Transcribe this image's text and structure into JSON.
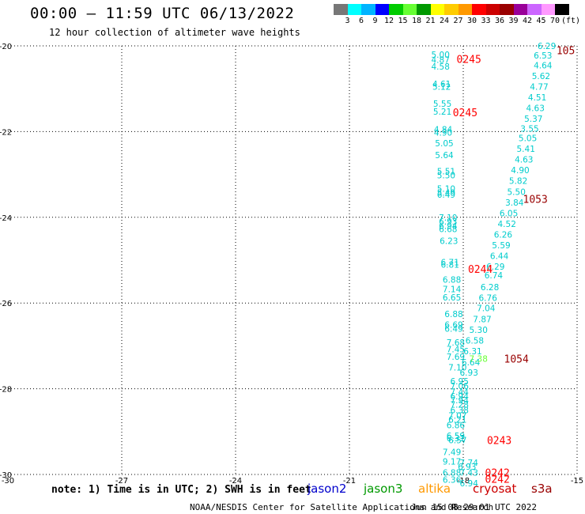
{
  "header": {
    "title": "00:00 – 11:59 UTC 06/13/2022",
    "subtitle": "12 hour collection of altimeter wave heights"
  },
  "colorbar": {
    "colors": [
      "#777777",
      "#00ffff",
      "#00b4ff",
      "#0000ff",
      "#00cc00",
      "#66ff33",
      "#009900",
      "#ffff00",
      "#ffcc00",
      "#ff9900",
      "#ff0000",
      "#cc0000",
      "#990000",
      "#990099",
      "#cc66ff",
      "#ff99ff",
      "#000000"
    ],
    "labels": [
      "3",
      "6",
      "9",
      "12",
      "15",
      "18",
      "21",
      "24",
      "27",
      "30",
      "33",
      "36",
      "39",
      "42",
      "45",
      "70"
    ],
    "unit": "(ft)"
  },
  "axes": {
    "y_ticks": [
      "-20",
      "-22",
      "-24",
      "-26",
      "-28",
      "-30"
    ],
    "x_ticks": [
      "-30",
      "-27",
      "-24",
      "-21",
      "-18",
      "-15"
    ]
  },
  "footer": {
    "note": "note: 1) Time is in UTC; 2) SWH is in feet",
    "satellites": [
      {
        "name": "jason2",
        "color": "#0000cc"
      },
      {
        "name": "jason3",
        "color": "#009900"
      },
      {
        "name": "altika",
        "color": "#ff9900"
      },
      {
        "name": "cryosat",
        "color": "#cc0000"
      },
      {
        "name": "s3a",
        "color": "#990000"
      }
    ],
    "credit": "NOAA/NESDIS Center for Satellite Applications and Research",
    "timestamp": "Jun 15 08:29:01 UTC 2022"
  },
  "chart_data": {
    "type": "scatter",
    "xlim": [
      -30,
      -15
    ],
    "ylim": [
      -30,
      -20
    ],
    "x_gridlines": [
      -27,
      -24,
      -21,
      -18,
      -15
    ],
    "y_gridlines": [
      -20,
      -22,
      -24,
      -26,
      -28,
      -30
    ],
    "point_color": "#00cccc",
    "time_color": "#ff0000",
    "time_dark_color": "#990000",
    "track_west": [
      {
        "x": -18.6,
        "y": -20.2,
        "v": "5.00"
      },
      {
        "x": -18.6,
        "y": -20.32,
        "v": "4.87"
      },
      {
        "x": -18.6,
        "y": -20.48,
        "v": "4.58"
      },
      {
        "x": -18.57,
        "y": -20.89,
        "v": "4.61"
      },
      {
        "x": -18.57,
        "y": -20.95,
        "v": "5.12"
      },
      {
        "x": -18.55,
        "y": -21.35,
        "v": "5.55"
      },
      {
        "x": -18.55,
        "y": -21.53,
        "v": "5.21"
      },
      {
        "x": -18.53,
        "y": -21.95,
        "v": "4.84"
      },
      {
        "x": -18.53,
        "y": -22.02,
        "v": "4.90"
      },
      {
        "x": -18.5,
        "y": -22.27,
        "v": "5.05"
      },
      {
        "x": -18.5,
        "y": -22.55,
        "v": "5.64"
      },
      {
        "x": -18.45,
        "y": -22.92,
        "v": "5.51"
      },
      {
        "x": -18.45,
        "y": -23.02,
        "v": "5.50"
      },
      {
        "x": -18.45,
        "y": -23.33,
        "v": "5.10"
      },
      {
        "x": -18.45,
        "y": -23.42,
        "v": "5.49"
      },
      {
        "x": -18.45,
        "y": -23.47,
        "v": "6.49"
      },
      {
        "x": -18.4,
        "y": -24.0,
        "v": "7.10"
      },
      {
        "x": -18.4,
        "y": -24.1,
        "v": "6.93"
      },
      {
        "x": -18.4,
        "y": -24.2,
        "v": "6.94"
      },
      {
        "x": -18.4,
        "y": -24.27,
        "v": "6.68"
      },
      {
        "x": -18.38,
        "y": -24.55,
        "v": "6.23"
      },
      {
        "x": -18.35,
        "y": -25.05,
        "v": "6.71"
      },
      {
        "x": -18.35,
        "y": -25.1,
        "v": "6.81"
      },
      {
        "x": -18.3,
        "y": -25.45,
        "v": "6.88"
      },
      {
        "x": -18.3,
        "y": -25.67,
        "v": "7.14"
      },
      {
        "x": -18.3,
        "y": -25.87,
        "v": "6.65"
      },
      {
        "x": -18.25,
        "y": -26.25,
        "v": "6.88"
      },
      {
        "x": -18.25,
        "y": -26.5,
        "v": "6.69"
      },
      {
        "x": -18.25,
        "y": -26.6,
        "v": "6.49"
      },
      {
        "x": -18.2,
        "y": -26.92,
        "v": "7.68"
      },
      {
        "x": -18.2,
        "y": -27.08,
        "v": "7.45"
      },
      {
        "x": -18.2,
        "y": -27.25,
        "v": "7.69"
      },
      {
        "x": -18.15,
        "y": -27.5,
        "v": "7.10"
      },
      {
        "x": -18.1,
        "y": -27.82,
        "v": "6.95"
      },
      {
        "x": -18.1,
        "y": -27.93,
        "v": "7.06"
      },
      {
        "x": -18.1,
        "y": -28.07,
        "v": "7.44"
      },
      {
        "x": -18.1,
        "y": -28.17,
        "v": "6.94"
      },
      {
        "x": -18.1,
        "y": -28.27,
        "v": "7.94"
      },
      {
        "x": -18.1,
        "y": -28.37,
        "v": "7.28"
      },
      {
        "x": -18.1,
        "y": -28.5,
        "v": "6.38"
      },
      {
        "x": -18.15,
        "y": -28.63,
        "v": "7.07"
      },
      {
        "x": -18.15,
        "y": -28.72,
        "v": "6.21"
      },
      {
        "x": -18.2,
        "y": -28.85,
        "v": "6.86"
      },
      {
        "x": -18.2,
        "y": -29.1,
        "v": "6.59"
      },
      {
        "x": -18.2,
        "y": -29.15,
        "v": "6.31"
      },
      {
        "x": -18.15,
        "y": -29.2,
        "v": "6.57"
      },
      {
        "x": -18.3,
        "y": -29.47,
        "v": "7.49"
      },
      {
        "x": -18.3,
        "y": -29.7,
        "v": "9.17"
      },
      {
        "x": -17.85,
        "y": -29.72,
        "v": "7.74"
      },
      {
        "x": -17.9,
        "y": -29.82,
        "v": "6.93"
      },
      {
        "x": -18.3,
        "y": -29.95,
        "v": "6.88"
      },
      {
        "x": -17.85,
        "y": -29.95,
        "v": "7.43"
      },
      {
        "x": -18.3,
        "y": -30.12,
        "v": "6.36"
      },
      {
        "x": -17.85,
        "y": -30.2,
        "v": "6.94"
      }
    ],
    "track_east": [
      {
        "x": -15.8,
        "y": -20.0,
        "v": "6.29"
      },
      {
        "x": -15.9,
        "y": -20.22,
        "v": "6.53"
      },
      {
        "x": -15.9,
        "y": -20.45,
        "v": "4.64"
      },
      {
        "x": -15.95,
        "y": -20.7,
        "v": "5.62"
      },
      {
        "x": -16.0,
        "y": -20.95,
        "v": "4.77"
      },
      {
        "x": -16.05,
        "y": -21.2,
        "v": "4.51"
      },
      {
        "x": -16.1,
        "y": -21.45,
        "v": "4.63"
      },
      {
        "x": -16.15,
        "y": -21.7,
        "v": "5.37"
      },
      {
        "x": -16.25,
        "y": -21.93,
        "v": "3.55"
      },
      {
        "x": -16.3,
        "y": -22.15,
        "v": "5.05"
      },
      {
        "x": -16.35,
        "y": -22.4,
        "v": "5.41"
      },
      {
        "x": -16.4,
        "y": -22.65,
        "v": "4.63"
      },
      {
        "x": -16.5,
        "y": -22.9,
        "v": "4.90"
      },
      {
        "x": -16.55,
        "y": -23.15,
        "v": "5.82"
      },
      {
        "x": -16.6,
        "y": -23.4,
        "v": "5.50"
      },
      {
        "x": -16.65,
        "y": -23.65,
        "v": "3.84"
      },
      {
        "x": -16.8,
        "y": -23.9,
        "v": "6.05"
      },
      {
        "x": -16.85,
        "y": -24.15,
        "v": "4.52"
      },
      {
        "x": -16.95,
        "y": -24.4,
        "v": "6.26"
      },
      {
        "x": -17.0,
        "y": -24.65,
        "v": "5.59"
      },
      {
        "x": -17.05,
        "y": -24.9,
        "v": "6.44"
      },
      {
        "x": -17.15,
        "y": -25.15,
        "v": "6.29"
      },
      {
        "x": -17.2,
        "y": -25.35,
        "v": "6.74"
      },
      {
        "x": -17.3,
        "y": -25.63,
        "v": "6.28"
      },
      {
        "x": -17.35,
        "y": -25.88,
        "v": "6.76"
      },
      {
        "x": -17.4,
        "y": -26.12,
        "v": "7.04"
      },
      {
        "x": -17.5,
        "y": -26.37,
        "v": "7.87"
      },
      {
        "x": -17.6,
        "y": -26.62,
        "v": "5.30"
      },
      {
        "x": -17.7,
        "y": -26.87,
        "v": "6.58"
      },
      {
        "x": -17.75,
        "y": -27.12,
        "v": "6.31"
      },
      {
        "x": -17.8,
        "y": -27.38,
        "v": "6.64"
      },
      {
        "x": -17.85,
        "y": -27.62,
        "v": "6.93"
      }
    ],
    "extra_points": [
      {
        "x": -17.6,
        "y": -27.3,
        "v": "7.38",
        "color": "#66ff33"
      }
    ],
    "time_labels": [
      {
        "x": -17.85,
        "y": -20.3,
        "v": "0245",
        "color": "#ff0000"
      },
      {
        "x": -17.95,
        "y": -21.55,
        "v": "0245",
        "color": "#ff0000"
      },
      {
        "x": -17.55,
        "y": -25.2,
        "v": "0244",
        "color": "#ff0000"
      },
      {
        "x": -17.05,
        "y": -29.2,
        "v": "0243",
        "color": "#ff0000"
      },
      {
        "x": -17.1,
        "y": -29.95,
        "v": "0242",
        "color": "#ff0000"
      },
      {
        "x": -17.1,
        "y": -30.1,
        "v": "0242",
        "color": "#ff0000"
      },
      {
        "x": -15.3,
        "y": -20.1,
        "v": "105",
        "color": "#990000"
      },
      {
        "x": -16.1,
        "y": -23.57,
        "v": "1053",
        "color": "#990000"
      },
      {
        "x": -16.6,
        "y": -27.3,
        "v": "1054",
        "color": "#990000"
      }
    ]
  }
}
